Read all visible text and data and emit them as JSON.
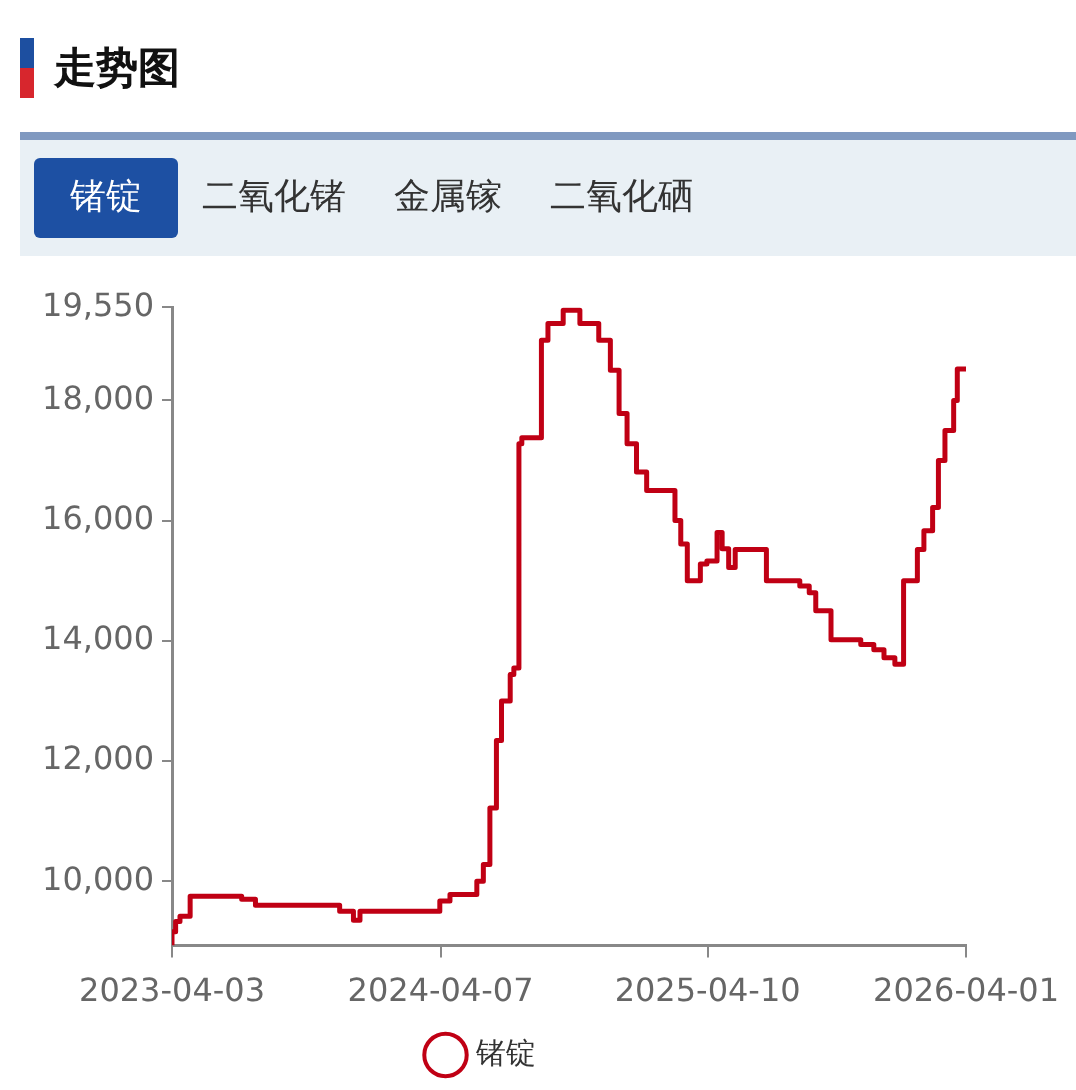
{
  "chart_data": {
    "type": "step",
    "title": "走势图",
    "annotations": [
      "二氧化锗",
      "金属镓",
      "二氧化硒"
    ],
    "x": [
      "2023-04-03",
      "2023-04-08",
      "2023-04-14",
      "2023-04-28",
      "2023-07-08",
      "2023-07-27",
      "2023-11-20",
      "2023-12-09",
      "2023-12-18",
      "2024-04-06",
      "2024-04-20",
      "2024-05-27",
      "2024-06-05",
      "2024-06-14",
      "2024-06-23",
      "2024-06-30",
      "2024-07-12",
      "2024-07-17",
      "2024-07-24",
      "2024-07-28",
      "2024-08-24",
      "2024-09-02",
      "2024-09-23",
      "2024-10-16",
      "2024-11-11",
      "2024-11-27",
      "2024-12-09",
      "2024-12-20",
      "2025-01-02",
      "2025-01-16",
      "2025-02-24",
      "2025-03-04",
      "2025-03-13",
      "2025-03-31",
      "2025-04-09",
      "2025-04-23",
      "2025-04-30",
      "2025-05-09",
      "2025-05-18",
      "2025-06-30",
      "2025-08-15",
      "2025-08-28",
      "2025-09-06",
      "2025-09-27",
      "2025-11-07",
      "2025-11-25",
      "2025-12-09",
      "2025-12-24",
      "2026-01-05",
      "2026-01-24",
      "2026-02-02",
      "2026-02-14",
      "2026-02-22",
      "2026-03-03",
      "2026-03-15",
      "2026-03-20",
      "2026-04-01"
    ],
    "series": [
      {
        "name": "锗锭",
        "color": "#c00014",
        "values": [
          8930,
          9160,
          9330,
          9420,
          9750,
          9700,
          9600,
          9500,
          9350,
          9500,
          9670,
          9780,
          10000,
          10280,
          11220,
          12340,
          13000,
          13440,
          13550,
          17280,
          17380,
          19000,
          19280,
          19500,
          19280,
          19000,
          18500,
          17780,
          17280,
          16810,
          16500,
          16000,
          15610,
          15000,
          15280,
          15330,
          15800,
          15530,
          15220,
          15520,
          15000,
          14910,
          14800,
          14500,
          14020,
          13940,
          13850,
          13720,
          13610,
          15000,
          15520,
          15830,
          16220,
          17000,
          17500,
          18000,
          18520
        ]
      }
    ],
    "xlim": [
      "2023-04-03",
      "2026-04-01"
    ],
    "xticks": [
      "2023-04-03",
      "2024-04-07",
      "2025-04-10",
      "2026-04-01"
    ],
    "ylim": [
      8930,
      19550
    ],
    "yticks": [
      {
        "value": 10000,
        "label": "10,000"
      },
      {
        "value": 12000,
        "label": "12,000"
      },
      {
        "value": 14000,
        "label": "14,000"
      },
      {
        "value": 16000,
        "label": "16,000"
      },
      {
        "value": 18000,
        "label": "18,000"
      },
      {
        "value": 19550,
        "label": "19,550"
      }
    ],
    "grid": false,
    "legend": "bottom",
    "marker": "none",
    "line_style": "solid"
  }
}
